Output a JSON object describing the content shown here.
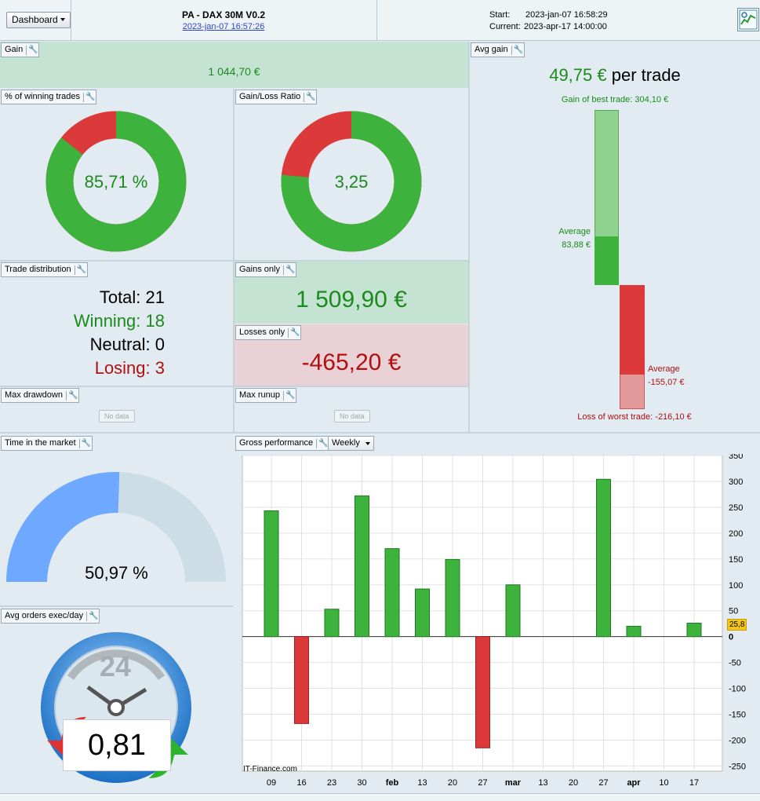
{
  "header": {
    "dashboard_label": "Dashboard",
    "title": "PA - DAX 30M V0.2",
    "title_date": "2023-jan-07 16:57:26",
    "start_label": "Start:",
    "start_value": "2023-jan-07 16:58:29",
    "current_label": "Current:",
    "current_value": "2023-apr-17 14:00:00"
  },
  "gain": {
    "tab": "Gain",
    "value": "1 044,70 €"
  },
  "winning_pct": {
    "tab": "% of winning trades",
    "value": "85,71 %",
    "fraction": 0.8571
  },
  "gain_loss_ratio": {
    "tab": "Gain/Loss Ratio",
    "value": "3,25",
    "fraction": 0.7647
  },
  "trade_distribution": {
    "tab": "Trade distribution",
    "total": "Total: 21",
    "winning": "Winning: 18",
    "neutral": "Neutral: 0",
    "losing": "Losing: 3"
  },
  "gains_only": {
    "tab": "Gains only",
    "value": "1 509,90 €"
  },
  "losses_only": {
    "tab": "Losses only",
    "value": "-465,20 €"
  },
  "max_drawdown": {
    "tab": "Max drawdown",
    "nodata": "No data"
  },
  "max_runup": {
    "tab": "Max runup",
    "nodata": "No data"
  },
  "avg_gain": {
    "tab": "Avg gain",
    "value": "49,75 €",
    "suffix": "per trade",
    "best_label": "Gain of best trade: 304,10 €",
    "avg_gain_label": "Average",
    "avg_gain_value": "83,88 €",
    "avg_loss_label": "Average",
    "avg_loss_value": "-155,07 €",
    "worst_label": "Loss of worst trade: -216,10 €",
    "best": 304.1,
    "avg_win": 83.88,
    "avg_loss": -155.07,
    "worst": -216.1
  },
  "time_in_market": {
    "tab": "Time in the market",
    "value": "50,97 %",
    "fraction": 0.5097
  },
  "avg_orders": {
    "tab": "Avg orders exec/day",
    "value": "0,81",
    "clock_number": "24"
  },
  "gross_performance": {
    "tab": "Gross performance",
    "period": "Weekly",
    "watermark": "IT-Finance.com",
    "current_value_label": "25,8"
  },
  "colors": {
    "green": "#3db33d",
    "red": "#dc3a3a",
    "light_green": "#8fd18f",
    "light_red": "#e39a9a",
    "blue": "#6ea8ff"
  },
  "chart_data": {
    "type": "bar",
    "categories": [
      "09",
      "16",
      "23",
      "30",
      "feb",
      "13",
      "20",
      "27",
      "mar",
      "13",
      "20",
      "27",
      "apr",
      "10",
      "17"
    ],
    "values": [
      243,
      -168,
      53,
      272,
      170,
      92,
      149,
      -215,
      100,
      0,
      0,
      304,
      20,
      0,
      26
    ],
    "ylim": [
      -260,
      350
    ],
    "yticks": [
      -250,
      -200,
      -150,
      -100,
      -50,
      0,
      50,
      100,
      150,
      200,
      250,
      300,
      350
    ],
    "ylabel": "",
    "xlabel": "",
    "title": "",
    "grid": true
  }
}
